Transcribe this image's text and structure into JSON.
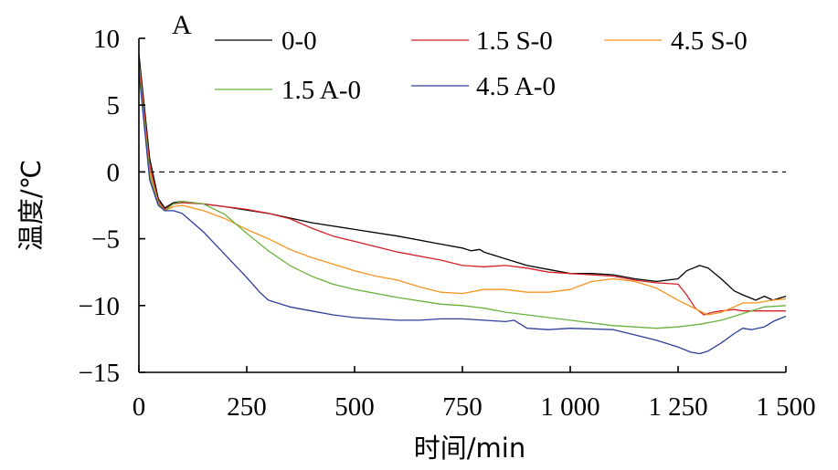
{
  "chart_data": {
    "type": "line",
    "panel_label": "A",
    "title": "",
    "xlabel": "时间/min",
    "ylabel": "温度/℃",
    "xlim": [
      0,
      1500
    ],
    "ylim": [
      -15,
      10
    ],
    "x_ticks": [
      0,
      250,
      500,
      750,
      1000,
      1250,
      1500
    ],
    "x_tick_labels": [
      "0",
      "250",
      "500",
      "750",
      "1 000",
      "1 250",
      "1 500"
    ],
    "y_ticks": [
      10,
      5,
      0,
      -5,
      -10,
      -15
    ],
    "y_tick_labels": [
      "10",
      "5",
      "0",
      "−5",
      "−10",
      "−15"
    ],
    "reference_line": {
      "y": 0,
      "style": "dashed"
    },
    "legend_position": "top",
    "series": [
      {
        "name": "0-0",
        "color": "#000000",
        "x": [
          0,
          25,
          45,
          60,
          80,
          100,
          150,
          200,
          300,
          400,
          500,
          600,
          700,
          750,
          770,
          790,
          800,
          850,
          900,
          950,
          1000,
          1050,
          1100,
          1150,
          1200,
          1250,
          1270,
          1300,
          1320,
          1350,
          1380,
          1400,
          1430,
          1450,
          1470,
          1500
        ],
        "y": [
          8.8,
          1.0,
          -2.0,
          -2.7,
          -2.3,
          -2.2,
          -2.4,
          -2.6,
          -3.1,
          -3.8,
          -4.3,
          -4.8,
          -5.4,
          -5.7,
          -5.9,
          -5.8,
          -6.0,
          -6.5,
          -7.0,
          -7.3,
          -7.6,
          -7.6,
          -7.7,
          -8.0,
          -8.2,
          -8.0,
          -7.4,
          -7.0,
          -7.2,
          -8.0,
          -8.9,
          -9.2,
          -9.6,
          -9.3,
          -9.6,
          -9.3
        ]
      },
      {
        "name": "1.5 S-0",
        "color": "#d52027",
        "x": [
          0,
          25,
          45,
          60,
          80,
          100,
          150,
          200,
          250,
          300,
          350,
          400,
          450,
          500,
          600,
          700,
          750,
          800,
          850,
          900,
          950,
          1000,
          1050,
          1100,
          1150,
          1200,
          1250,
          1270,
          1290,
          1310,
          1330,
          1350,
          1380,
          1400,
          1450,
          1500
        ],
        "y": [
          8.3,
          0.5,
          -2.2,
          -2.8,
          -2.4,
          -2.3,
          -2.4,
          -2.6,
          -2.8,
          -3.1,
          -3.5,
          -4.2,
          -4.8,
          -5.2,
          -6.0,
          -6.6,
          -7.0,
          -7.1,
          -7.0,
          -7.2,
          -7.5,
          -7.6,
          -7.7,
          -7.8,
          -8.1,
          -8.3,
          -8.4,
          -9.2,
          -10.2,
          -10.7,
          -10.5,
          -10.4,
          -10.3,
          -10.4,
          -10.4,
          -10.4
        ]
      },
      {
        "name": "4.5 S-0",
        "color": "#f7931e",
        "x": [
          0,
          25,
          45,
          60,
          80,
          100,
          150,
          200,
          250,
          300,
          350,
          400,
          450,
          500,
          550,
          600,
          650,
          700,
          750,
          800,
          850,
          900,
          950,
          1000,
          1050,
          1100,
          1150,
          1200,
          1250,
          1300,
          1320,
          1350,
          1380,
          1400,
          1430,
          1450,
          1470,
          1500
        ],
        "y": [
          8.0,
          0.0,
          -2.3,
          -2.9,
          -2.6,
          -2.5,
          -2.9,
          -3.5,
          -4.3,
          -5.0,
          -5.8,
          -6.4,
          -6.9,
          -7.4,
          -7.8,
          -8.1,
          -8.6,
          -9.0,
          -9.1,
          -8.8,
          -8.8,
          -9.0,
          -9.0,
          -8.8,
          -8.2,
          -8.0,
          -8.2,
          -8.7,
          -9.6,
          -10.4,
          -10.7,
          -10.5,
          -10.1,
          -9.8,
          -9.8,
          -9.7,
          -9.6,
          -9.5
        ]
      },
      {
        "name": "1.5 A-0",
        "color": "#6ab23e",
        "x": [
          0,
          25,
          45,
          60,
          80,
          100,
          150,
          200,
          250,
          300,
          350,
          400,
          450,
          500,
          600,
          700,
          750,
          800,
          850,
          900,
          950,
          1000,
          1100,
          1200,
          1250,
          1300,
          1350,
          1400,
          1450,
          1500
        ],
        "y": [
          7.8,
          -0.3,
          -2.4,
          -2.9,
          -2.4,
          -2.2,
          -2.4,
          -3.2,
          -4.6,
          -5.9,
          -7.0,
          -7.8,
          -8.4,
          -8.8,
          -9.4,
          -9.9,
          -10.0,
          -10.2,
          -10.5,
          -10.7,
          -10.9,
          -11.1,
          -11.5,
          -11.7,
          -11.6,
          -11.4,
          -11.1,
          -10.6,
          -10.1,
          -10.0
        ]
      },
      {
        "name": "4.5 A-0",
        "color": "#2e3e9a",
        "x": [
          0,
          25,
          45,
          60,
          80,
          100,
          150,
          200,
          250,
          280,
          300,
          350,
          400,
          450,
          500,
          600,
          650,
          700,
          750,
          800,
          850,
          870,
          900,
          950,
          1000,
          1100,
          1150,
          1200,
          1250,
          1280,
          1300,
          1320,
          1350,
          1380,
          1400,
          1420,
          1450,
          1470,
          1500
        ],
        "y": [
          7.5,
          -0.6,
          -2.5,
          -2.9,
          -2.9,
          -3.1,
          -4.5,
          -6.2,
          -7.9,
          -9.0,
          -9.6,
          -10.1,
          -10.4,
          -10.7,
          -10.9,
          -11.1,
          -11.1,
          -11.0,
          -11.0,
          -11.1,
          -11.2,
          -11.1,
          -11.7,
          -11.8,
          -11.7,
          -11.8,
          -12.2,
          -12.6,
          -13.1,
          -13.5,
          -13.6,
          -13.4,
          -12.8,
          -12.1,
          -11.7,
          -11.8,
          -11.6,
          -11.2,
          -10.8
        ]
      }
    ]
  }
}
